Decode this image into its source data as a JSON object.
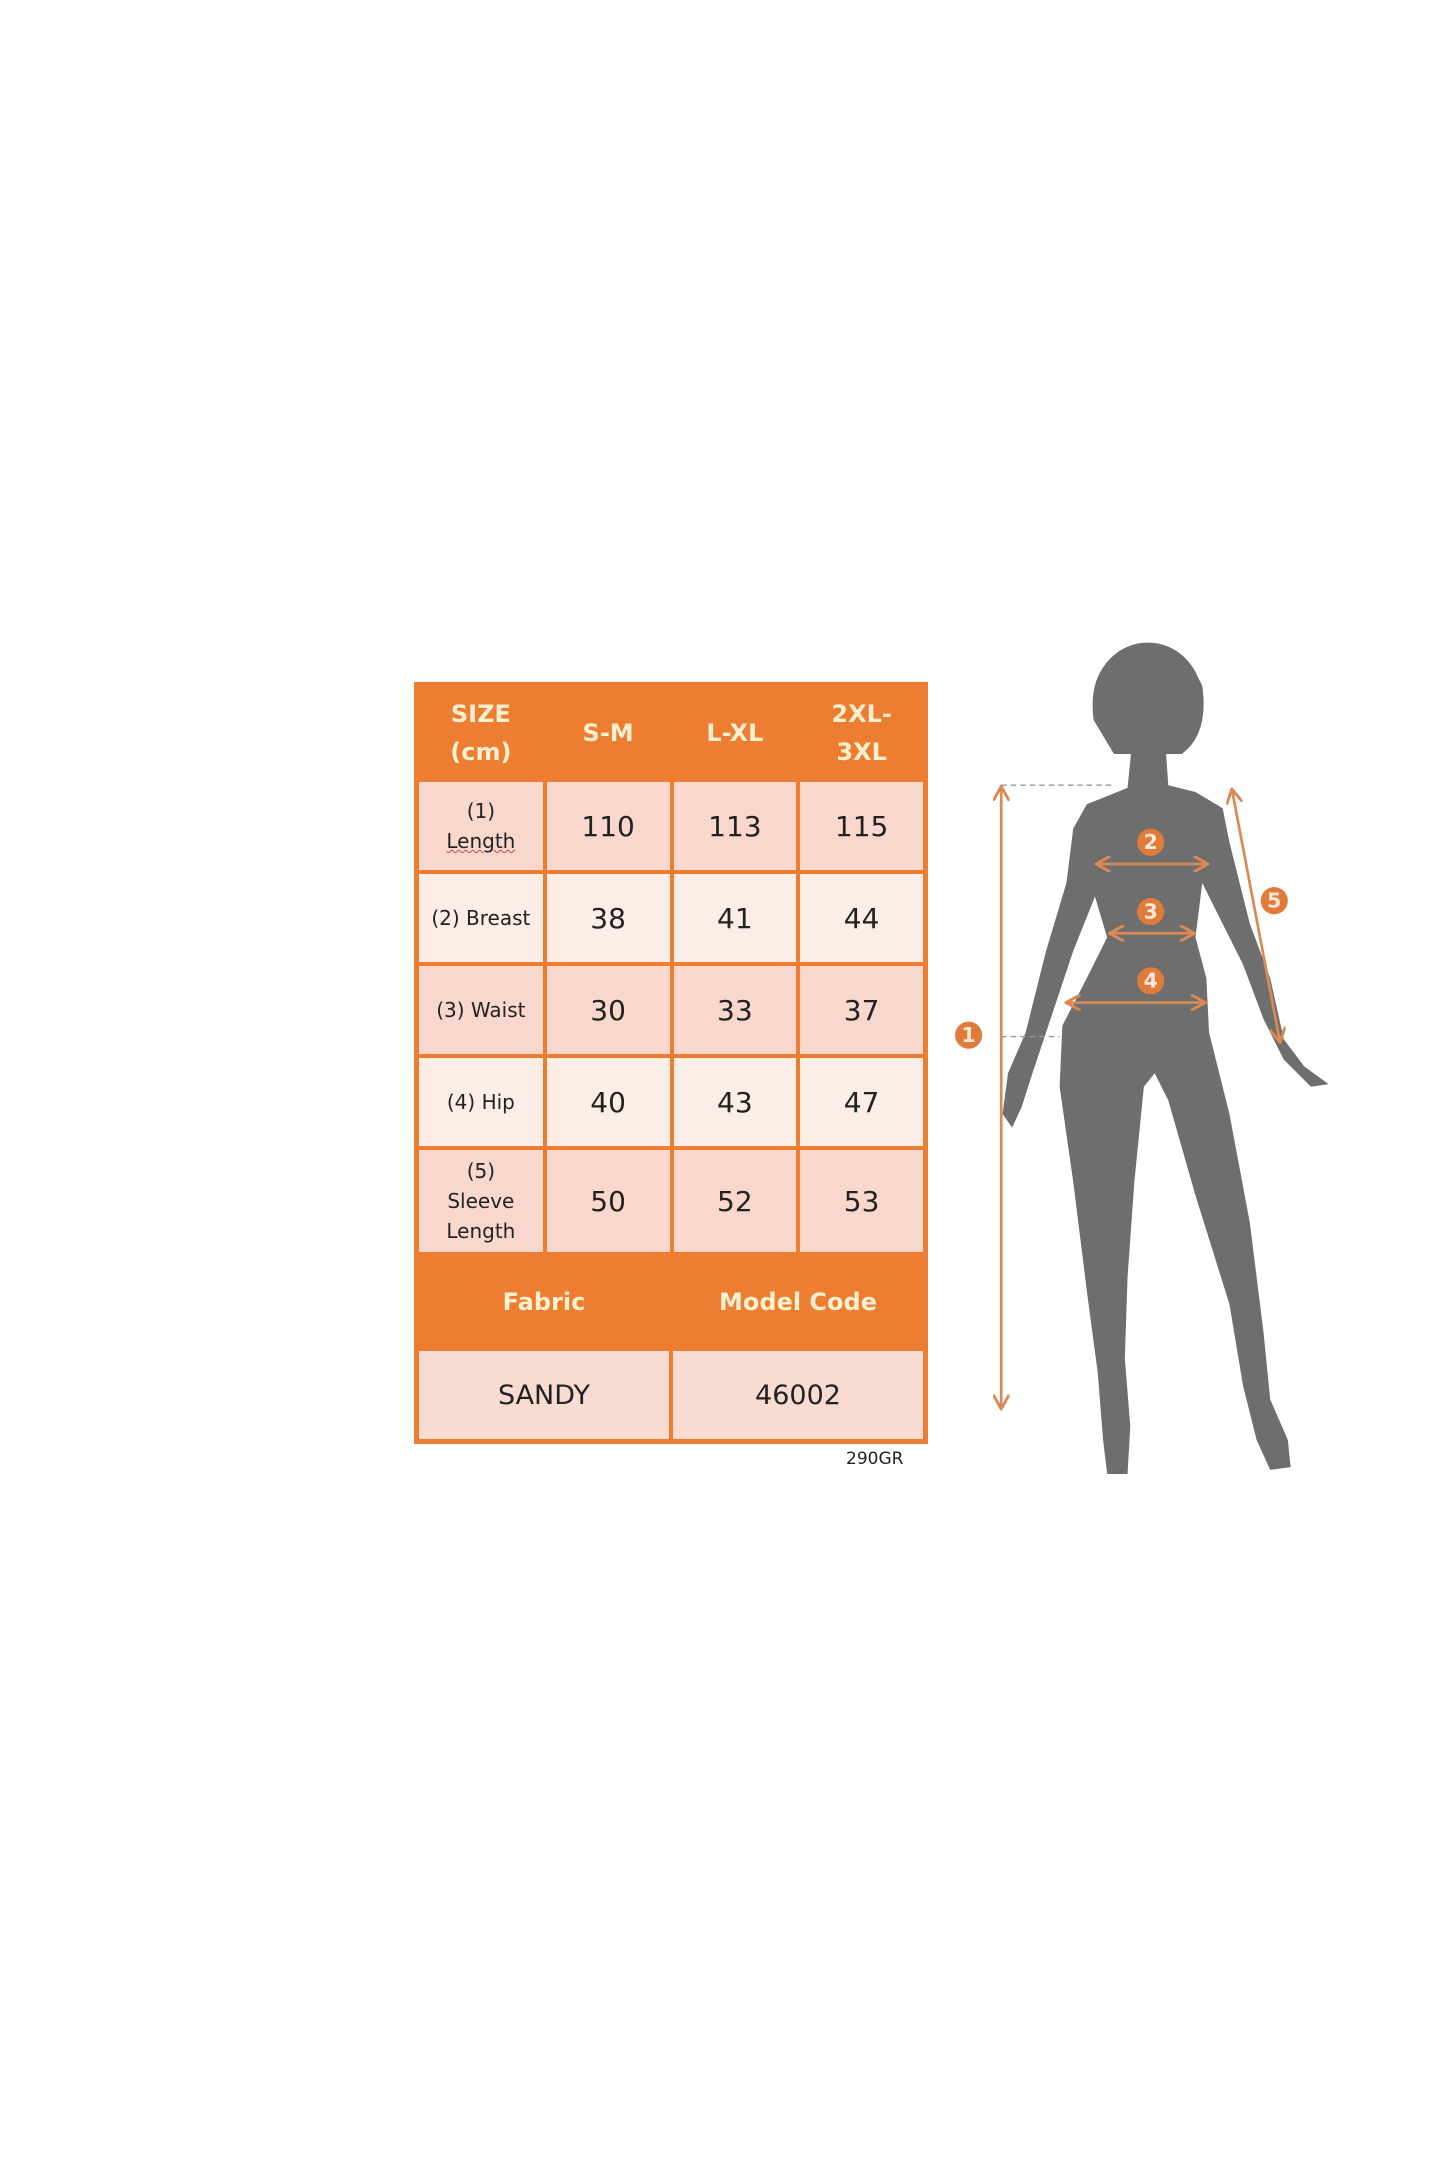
{
  "size_table": {
    "header": [
      "SIZE (cm)",
      "S-M",
      "L-XL",
      "2XL-3XL"
    ],
    "header_lines": [
      [
        "SIZE",
        "(cm)"
      ],
      [
        "S-M"
      ],
      [
        "L-XL"
      ],
      [
        "2XL-",
        "3XL"
      ]
    ],
    "rows": [
      {
        "label_lines": [
          "(1)",
          "Length"
        ],
        "values": [
          "110",
          "113",
          "115"
        ]
      },
      {
        "label_lines": [
          "(2) Breast"
        ],
        "values": [
          "38",
          "41",
          "44"
        ]
      },
      {
        "label_lines": [
          "(3) Waist"
        ],
        "values": [
          "30",
          "33",
          "37"
        ]
      },
      {
        "label_lines": [
          "(4) Hip"
        ],
        "values": [
          "40",
          "43",
          "47"
        ]
      },
      {
        "label_lines": [
          "(5)",
          "Sleeve",
          "Length"
        ],
        "values": [
          "50",
          "52",
          "53"
        ]
      }
    ],
    "footer_headers": [
      "Fabric",
      "Model Code"
    ],
    "footer_values": [
      "SANDY",
      "46002"
    ]
  },
  "weight_note": "290GR",
  "figure": {
    "badges": [
      "1",
      "2",
      "3",
      "4",
      "5"
    ],
    "accent_color": "#ED7D31",
    "silhouette_color": "#6E6E6E"
  }
}
